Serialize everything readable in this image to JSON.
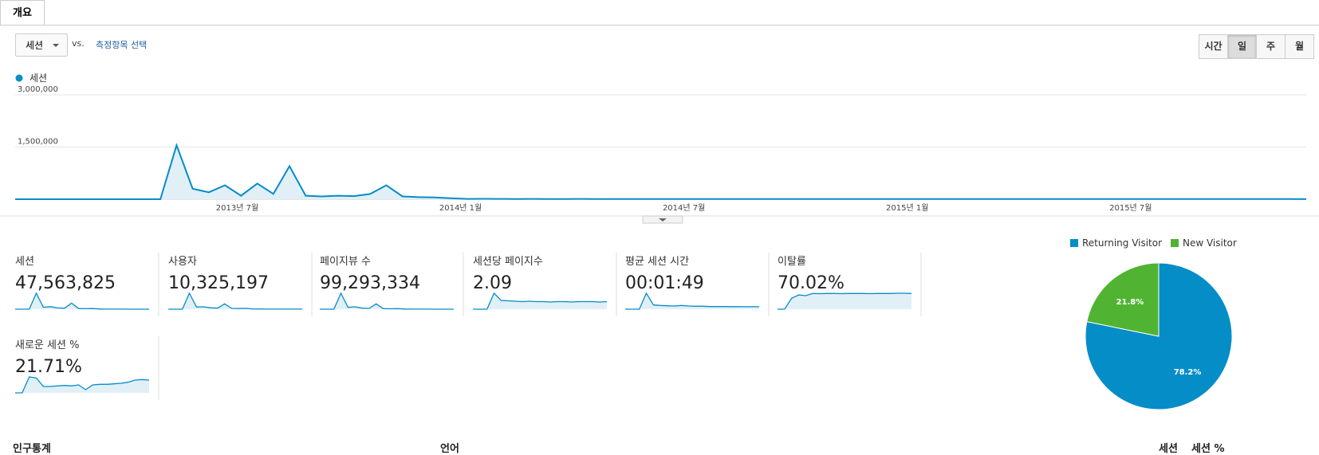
{
  "tab": "개요",
  "controls": {
    "metric_dropdown": "세션",
    "vs": "vs.",
    "select_metric": "측정항목 선택",
    "periods": [
      "시간",
      "일",
      "주",
      "월"
    ],
    "selected_period": 1
  },
  "chart_data": [
    {
      "type": "line",
      "series": [
        {
          "name": "세션",
          "color": "#058dc7",
          "values": [
            0,
            0,
            0,
            0,
            0,
            0,
            0,
            0,
            0,
            0,
            1550000,
            300000,
            200000,
            400000,
            100000,
            450000,
            150000,
            950000,
            100000,
            80000,
            100000,
            90000,
            150000,
            400000,
            80000,
            60000,
            50000,
            30000,
            10000,
            12000,
            9000,
            8000,
            10000,
            7000,
            8000,
            9000,
            6000,
            7000,
            8000,
            6000,
            7000,
            5000,
            6000,
            8000,
            5000,
            6000,
            7000,
            5000,
            6000,
            5000,
            6000,
            7000,
            5000,
            4000,
            6000,
            5000,
            5000,
            6000,
            4000,
            5000,
            6000,
            5000,
            4000,
            5000,
            6000,
            4000,
            5000,
            5000,
            4000,
            5000,
            4000,
            6000,
            5000,
            4000,
            5000,
            4000,
            5000,
            4000,
            5000,
            4000,
            3000
          ]
        }
      ],
      "x_labels": [
        "2013년 7월",
        "2014년 1월",
        "2014년 7월",
        "2015년 1월",
        "2015년 7월"
      ],
      "ylim": [
        0,
        3000000
      ],
      "yticks": [
        {
          "value": 1500000,
          "label": "1,500,000"
        },
        {
          "value": 3000000,
          "label": "3,000,000"
        }
      ],
      "grid": true
    },
    {
      "type": "pie",
      "categories": [
        "Returning Visitor",
        "New Visitor"
      ],
      "values": [
        78.2,
        21.8
      ],
      "value_labels": [
        "78.2%",
        "21.8%"
      ],
      "colors": [
        "#058dc7",
        "#50b432"
      ]
    }
  ],
  "metrics": [
    {
      "label": "세션",
      "value": "47,563,825",
      "sparkline": [
        0,
        0,
        0,
        2500000,
        300000,
        400000,
        200000,
        150000,
        950000,
        100000,
        80000,
        100000,
        30000,
        10000,
        10000,
        8000,
        6000,
        5000,
        5000,
        4000
      ]
    },
    {
      "label": "사용자",
      "value": "10,325,197",
      "sparkline": [
        0,
        0,
        0,
        600000,
        80000,
        90000,
        50000,
        40000,
        200000,
        30000,
        25000,
        30000,
        10000,
        5000,
        4000,
        3000,
        3000,
        2500,
        2500,
        2000
      ]
    },
    {
      "label": "페이지뷰 수",
      "value": "99,293,334",
      "sparkline": [
        0,
        0,
        0,
        6000000,
        700000,
        900000,
        400000,
        300000,
        2000000,
        200000,
        150000,
        200000,
        60000,
        20000,
        20000,
        16000,
        12000,
        10000,
        10000,
        8000
      ]
    },
    {
      "label": "세션당 페이지수",
      "value": "2.09",
      "sparkline": [
        0,
        0,
        0,
        4.2,
        2.3,
        2.2,
        2.1,
        2,
        2.1,
        2,
        2,
        1.9,
        2,
        2,
        1.9,
        2,
        2,
        2,
        1.9,
        2
      ]
    },
    {
      "label": "평균 세션 시간",
      "value": "00:01:49",
      "sparkline": [
        0,
        0,
        0,
        300,
        80,
        70,
        65,
        60,
        70,
        60,
        55,
        55,
        50,
        50,
        50,
        48,
        48,
        47,
        47,
        46
      ]
    },
    {
      "label": "이탈률",
      "value": "70.02%",
      "sparkline": [
        0,
        0,
        50,
        65,
        62,
        72,
        71,
        72,
        72,
        71,
        72,
        72,
        72,
        71,
        72,
        72,
        72,
        73,
        73,
        72
      ]
    },
    {
      "label": "새로운 세션 %",
      "value": "21.71%",
      "sparkline": [
        0,
        0,
        30,
        28,
        12,
        12,
        13,
        14,
        13,
        15,
        6,
        15,
        16,
        16,
        17,
        18,
        20,
        24,
        25,
        24
      ]
    }
  ],
  "bottom_headers": {
    "demographics": "인구통계",
    "language": "언어",
    "sessions": "세션",
    "sessions_pct": "세션 %"
  }
}
